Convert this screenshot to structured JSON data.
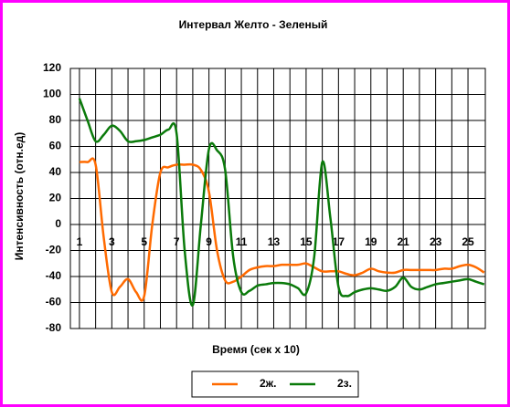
{
  "chart_data": {
    "type": "line",
    "title": "Интервал Желто - Зеленый",
    "x_label": "Время (сек x 10)",
    "y_label": "Интенсивность (отн.ед)",
    "x": [
      1,
      1.5,
      2,
      2.5,
      3,
      3.5,
      4,
      4.5,
      5,
      5.5,
      6,
      6.5,
      7,
      7.5,
      8,
      8.5,
      9,
      9.5,
      10,
      10.5,
      11,
      11.5,
      12,
      12.5,
      13,
      13.5,
      14,
      14.5,
      15,
      15.5,
      16,
      16.5,
      17,
      17.5,
      18,
      18.5,
      19,
      19.5,
      20,
      20.5,
      21,
      21.5,
      22,
      22.5,
      23,
      23.5,
      24,
      24.5,
      25,
      25.5,
      26
    ],
    "xlim": [
      0.44,
      26.07
    ],
    "xticks": [
      1,
      3,
      5,
      7,
      9,
      11,
      13,
      15,
      17,
      19,
      21,
      23,
      25
    ],
    "ylim": [
      -80,
      120
    ],
    "yticks": [
      -80,
      -60,
      -40,
      -20,
      0,
      20,
      40,
      60,
      80,
      100,
      120
    ],
    "grid": true,
    "series": [
      {
        "name": "2ж.",
        "color": "#ff6a00",
        "values": [
          48,
          48,
          46,
          -10,
          -52,
          -48,
          -42,
          -52,
          -55,
          0,
          40,
          44,
          46,
          46,
          46,
          42,
          25,
          -20,
          -43,
          -44,
          -40,
          -35,
          -33,
          -32,
          -32,
          -31,
          -31,
          -31,
          -30,
          -33,
          -36,
          -36,
          -36,
          -38,
          -39,
          -37,
          -34,
          -36,
          -37,
          -37,
          -35,
          -35,
          -35,
          -35,
          -35,
          -34,
          -34,
          -32,
          -31,
          -33,
          -37
        ]
      },
      {
        "name": "2з.",
        "color": "#0a7a0a",
        "values": [
          97,
          80,
          64,
          69,
          76,
          72,
          64,
          64,
          65,
          67,
          69,
          73,
          70,
          -20,
          -62,
          0,
          58,
          57,
          42,
          -25,
          -52,
          -51,
          -47,
          -46,
          -45,
          -45,
          -46,
          -49,
          -53,
          -25,
          48,
          5,
          -48,
          -55,
          -52,
          -50,
          -49,
          -50,
          -51,
          -48,
          -41,
          -48,
          -50,
          -48,
          -46,
          -45,
          -44,
          -43,
          -42,
          -44,
          -46
        ]
      }
    ],
    "legend": "bottom"
  }
}
